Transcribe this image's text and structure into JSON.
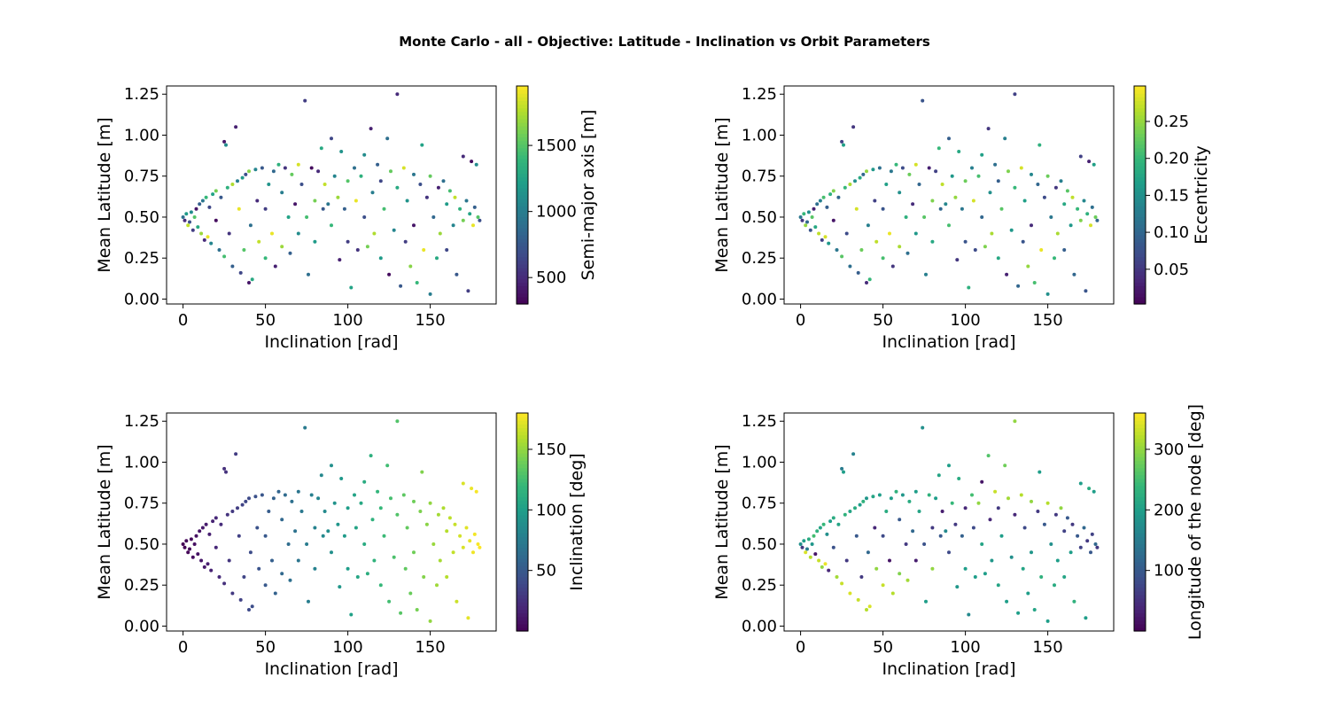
{
  "figure": {
    "title": "Monte Carlo - all - Objective: Latitude - Inclination vs Orbit Parameters"
  },
  "colormap": {
    "name": "viridis",
    "stops": [
      "#440154",
      "#482878",
      "#3e4a89",
      "#31688e",
      "#26828e",
      "#1f9e89",
      "#35b779",
      "#6ece58",
      "#b5de2b",
      "#fde725"
    ]
  },
  "chart_data": [
    {
      "type": "scatter",
      "panel": "top-left",
      "xlabel": "Inclination [rad]",
      "ylabel": "Mean Latitude [m]",
      "xlim": [
        -10,
        190
      ],
      "ylim": [
        -0.03,
        1.3
      ],
      "xticks": [
        0,
        50,
        100,
        150
      ],
      "yticks": [
        "0.00",
        "0.25",
        "0.50",
        "0.75",
        "1.00",
        "1.25"
      ],
      "color_by": "semi_major_axis",
      "colorbar": {
        "label": "Semi-major axis [m]",
        "range": [
          300,
          1950
        ],
        "ticks": [
          500,
          1000,
          1500
        ]
      },
      "grid": false
    },
    {
      "type": "scatter",
      "panel": "top-right",
      "xlabel": "Inclination [rad]",
      "ylabel": "Mean Latitude [m]",
      "xlim": [
        -10,
        190
      ],
      "ylim": [
        -0.03,
        1.3
      ],
      "xticks": [
        0,
        50,
        100,
        150
      ],
      "yticks": [
        "0.00",
        "0.25",
        "0.50",
        "0.75",
        "1.00",
        "1.25"
      ],
      "color_by": "eccentricity",
      "colorbar": {
        "label": "Eccentricity",
        "range": [
          0.003,
          0.298
        ],
        "ticks": [
          "0.05",
          "0.10",
          "0.15",
          "0.20",
          "0.25"
        ]
      },
      "grid": false
    },
    {
      "type": "scatter",
      "panel": "bottom-left",
      "xlabel": "Inclination [rad]",
      "ylabel": "Mean Latitude [m]",
      "xlim": [
        -10,
        190
      ],
      "ylim": [
        -0.03,
        1.3
      ],
      "xticks": [
        0,
        50,
        100,
        150
      ],
      "yticks": [
        "0.00",
        "0.25",
        "0.50",
        "0.75",
        "1.00",
        "1.25"
      ],
      "color_by": "inclination",
      "colorbar": {
        "label": "Inclination [deg]",
        "range": [
          0,
          180
        ],
        "ticks": [
          50,
          100,
          150
        ]
      },
      "grid": false
    },
    {
      "type": "scatter",
      "panel": "bottom-right",
      "xlabel": "Inclination [rad]",
      "ylabel": "Mean Latitude [m]",
      "xlim": [
        -10,
        190
      ],
      "ylim": [
        -0.03,
        1.3
      ],
      "xticks": [
        0,
        50,
        100,
        150
      ],
      "yticks": [
        "0.00",
        "0.25",
        "0.50",
        "0.75",
        "1.00",
        "1.25"
      ],
      "color_by": "longitude_of_node",
      "colorbar": {
        "label": "Longitude of the node [deg]",
        "range": [
          0,
          360
        ],
        "ticks": [
          100,
          200,
          300
        ]
      },
      "grid": false
    }
  ],
  "scatter_points": {
    "columns": [
      "inclination",
      "mean_latitude",
      "semi_major_axis",
      "eccentricity",
      "longitude_of_node"
    ],
    "rows": [
      [
        0,
        0.5,
        900,
        0.12,
        180
      ],
      [
        1,
        0.48,
        500,
        0.05,
        60
      ],
      [
        2,
        0.52,
        1200,
        0.2,
        200
      ],
      [
        3,
        0.45,
        1800,
        0.25,
        340
      ],
      [
        4,
        0.47,
        700,
        0.1,
        150
      ],
      [
        5,
        0.53,
        1100,
        0.15,
        220
      ],
      [
        6,
        0.42,
        600,
        0.08,
        320
      ],
      [
        7,
        0.5,
        1500,
        0.22,
        190
      ],
      [
        8,
        0.55,
        400,
        0.03,
        250
      ],
      [
        9,
        0.44,
        1300,
        0.18,
        20
      ],
      [
        10,
        0.58,
        800,
        0.11,
        230
      ],
      [
        11,
        0.4,
        1700,
        0.27,
        330
      ],
      [
        12,
        0.6,
        950,
        0.13,
        210
      ],
      [
        13,
        0.36,
        500,
        0.06,
        300
      ],
      [
        14,
        0.62,
        1400,
        0.21,
        240
      ],
      [
        15,
        0.38,
        1900,
        0.28,
        350
      ],
      [
        16,
        0.56,
        650,
        0.09,
        180
      ],
      [
        17,
        0.34,
        1050,
        0.16,
        40
      ],
      [
        18,
        0.64,
        1250,
        0.19,
        200
      ],
      [
        20,
        0.48,
        350,
        0.02,
        90
      ],
      [
        20,
        0.66,
        1600,
        0.24,
        220
      ],
      [
        22,
        0.3,
        900,
        0.12,
        310
      ],
      [
        23,
        0.62,
        750,
        0.1,
        210
      ],
      [
        25,
        0.26,
        1450,
        0.22,
        330
      ],
      [
        25,
        0.96,
        400,
        0.06,
        150
      ],
      [
        26,
        0.94,
        1100,
        0.17,
        200
      ],
      [
        27,
        0.68,
        1350,
        0.2,
        230
      ],
      [
        28,
        0.4,
        550,
        0.07,
        60
      ],
      [
        30,
        0.7,
        1750,
        0.26,
        210
      ],
      [
        30,
        0.2,
        800,
        0.11,
        340
      ],
      [
        32,
        1.05,
        450,
        0.05,
        160
      ],
      [
        33,
        0.72,
        1000,
        0.15,
        220
      ],
      [
        34,
        0.55,
        1900,
        0.28,
        100
      ],
      [
        35,
        0.16,
        650,
        0.09,
        330
      ],
      [
        36,
        0.74,
        1200,
        0.18,
        200
      ],
      [
        37,
        0.3,
        1500,
        0.23,
        60
      ],
      [
        38,
        0.76,
        700,
        0.1,
        230
      ],
      [
        40,
        0.1,
        400,
        0.04,
        320
      ],
      [
        40,
        0.78,
        1650,
        0.25,
        190
      ],
      [
        41,
        0.45,
        900,
        0.13,
        120
      ],
      [
        42,
        0.12,
        1300,
        0.2,
        340
      ],
      [
        44,
        0.79,
        1050,
        0.16,
        210
      ],
      [
        45,
        0.6,
        500,
        0.06,
        40
      ],
      [
        46,
        0.35,
        1800,
        0.27,
        300
      ],
      [
        48,
        0.8,
        750,
        0.11,
        200
      ],
      [
        50,
        0.25,
        1400,
        0.21,
        330
      ],
      [
        50,
        0.55,
        600,
        0.08,
        80
      ],
      [
        52,
        0.7,
        1150,
        0.17,
        220
      ],
      [
        54,
        0.4,
        1900,
        0.29,
        20
      ],
      [
        55,
        0.78,
        850,
        0.12,
        200
      ],
      [
        56,
        0.2,
        450,
        0.05,
        320
      ],
      [
        58,
        0.82,
        1350,
        0.2,
        230
      ],
      [
        60,
        0.65,
        1000,
        0.15,
        100
      ],
      [
        60,
        0.32,
        1700,
        0.26,
        290
      ],
      [
        62,
        0.8,
        550,
        0.07,
        190
      ],
      [
        64,
        0.5,
        1250,
        0.19,
        60
      ],
      [
        65,
        0.28,
        800,
        0.11,
        310
      ],
      [
        66,
        0.76,
        1550,
        0.23,
        220
      ],
      [
        68,
        0.58,
        400,
        0.04,
        120
      ],
      [
        70,
        0.4,
        1100,
        0.16,
        30
      ],
      [
        70,
        0.82,
        1850,
        0.28,
        200
      ],
      [
        72,
        0.7,
        700,
        0.1,
        210
      ],
      [
        74,
        1.21,
        600,
        0.08,
        180
      ],
      [
        75,
        0.5,
        1450,
        0.22,
        90
      ],
      [
        76,
        0.15,
        900,
        0.13,
        200
      ],
      [
        78,
        0.8,
        350,
        0.03,
        230
      ],
      [
        80,
        0.6,
        1600,
        0.24,
        60
      ],
      [
        80,
        0.35,
        1200,
        0.18,
        300
      ],
      [
        82,
        0.78,
        500,
        0.06,
        200
      ],
      [
        84,
        0.92,
        1300,
        0.2,
        210
      ],
      [
        85,
        0.55,
        750,
        0.1,
        100
      ],
      [
        86,
        0.7,
        1800,
        0.27,
        30
      ],
      [
        88,
        0.58,
        950,
        0.14,
        170
      ],
      [
        90,
        0.98,
        650,
        0.09,
        200
      ],
      [
        90,
        0.45,
        1400,
        0.21,
        80
      ],
      [
        92,
        0.75,
        1050,
        0.16,
        240
      ],
      [
        94,
        0.62,
        1700,
        0.25,
        60
      ],
      [
        95,
        0.24,
        450,
        0.05,
        190
      ],
      [
        96,
        0.9,
        1150,
        0.18,
        220
      ],
      [
        98,
        0.55,
        800,
        0.12,
        110
      ],
      [
        100,
        0.72,
        1500,
        0.23,
        40
      ],
      [
        100,
        0.35,
        600,
        0.08,
        200
      ],
      [
        102,
        0.07,
        1250,
        0.19,
        170
      ],
      [
        104,
        0.8,
        900,
        0.13,
        250
      ],
      [
        105,
        0.6,
        1900,
        0.28,
        80
      ],
      [
        106,
        0.3,
        550,
        0.07,
        200
      ],
      [
        108,
        0.75,
        1350,
        0.21,
        300
      ],
      [
        110,
        0.5,
        700,
        0.1,
        210
      ],
      [
        110,
        0.88,
        1100,
        0.17,
        20
      ],
      [
        112,
        0.32,
        1600,
        0.24,
        200
      ],
      [
        114,
        1.04,
        450,
        0.05,
        260
      ],
      [
        115,
        0.65,
        1000,
        0.15,
        40
      ],
      [
        116,
        0.4,
        1750,
        0.26,
        190
      ],
      [
        118,
        0.82,
        800,
        0.11,
        330
      ],
      [
        120,
        0.25,
        1200,
        0.18,
        210
      ],
      [
        120,
        0.72,
        650,
        0.09,
        60
      ],
      [
        122,
        0.55,
        1450,
        0.22,
        200
      ],
      [
        124,
        0.98,
        900,
        0.13,
        280
      ],
      [
        125,
        0.15,
        350,
        0.03,
        200
      ],
      [
        126,
        0.78,
        1550,
        0.24,
        310
      ],
      [
        128,
        0.42,
        1050,
        0.16,
        180
      ],
      [
        130,
        1.25,
        500,
        0.06,
        300
      ],
      [
        130,
        0.68,
        1300,
        0.2,
        40
      ],
      [
        132,
        0.08,
        750,
        0.1,
        200
      ],
      [
        134,
        0.8,
        1850,
        0.28,
        320
      ],
      [
        135,
        0.35,
        600,
        0.08,
        210
      ],
      [
        136,
        0.6,
        1150,
        0.17,
        80
      ],
      [
        138,
        0.2,
        1650,
        0.25,
        200
      ],
      [
        140,
        0.76,
        950,
        0.14,
        300
      ],
      [
        140,
        0.45,
        400,
        0.04,
        190
      ],
      [
        142,
        0.1,
        1400,
        0.21,
        210
      ],
      [
        144,
        0.7,
        700,
        0.1,
        60
      ],
      [
        145,
        0.94,
        1250,
        0.19,
        200
      ],
      [
        146,
        0.3,
        1900,
        0.29,
        230
      ],
      [
        148,
        0.62,
        550,
        0.07,
        100
      ],
      [
        150,
        0.03,
        1000,
        0.15,
        200
      ],
      [
        150,
        0.75,
        1550,
        0.23,
        320
      ],
      [
        152,
        0.5,
        850,
        0.12,
        180
      ],
      [
        154,
        0.25,
        1300,
        0.2,
        220
      ],
      [
        155,
        0.68,
        450,
        0.05,
        60
      ],
      [
        156,
        0.4,
        1700,
        0.26,
        200
      ],
      [
        158,
        0.72,
        900,
        0.13,
        300
      ],
      [
        160,
        0.58,
        1200,
        0.18,
        70
      ],
      [
        160,
        0.3,
        650,
        0.09,
        210
      ],
      [
        162,
        0.66,
        1450,
        0.22,
        100
      ],
      [
        164,
        0.45,
        1050,
        0.16,
        200
      ],
      [
        165,
        0.62,
        1800,
        0.27,
        60
      ],
      [
        166,
        0.15,
        750,
        0.1,
        230
      ],
      [
        168,
        0.55,
        1350,
        0.2,
        100
      ],
      [
        170,
        0.87,
        500,
        0.06,
        200
      ],
      [
        170,
        0.48,
        1600,
        0.24,
        70
      ],
      [
        172,
        0.6,
        950,
        0.14,
        120
      ],
      [
        173,
        0.05,
        600,
        0.08,
        200
      ],
      [
        174,
        0.52,
        1250,
        0.19,
        60
      ],
      [
        175,
        0.84,
        350,
        0.03,
        220
      ],
      [
        176,
        0.45,
        1900,
        0.28,
        100
      ],
      [
        177,
        0.56,
        800,
        0.11,
        70
      ],
      [
        178,
        0.82,
        1100,
        0.17,
        200
      ],
      [
        179,
        0.5,
        1500,
        0.23,
        120
      ],
      [
        180,
        0.48,
        700,
        0.1,
        60
      ]
    ]
  }
}
